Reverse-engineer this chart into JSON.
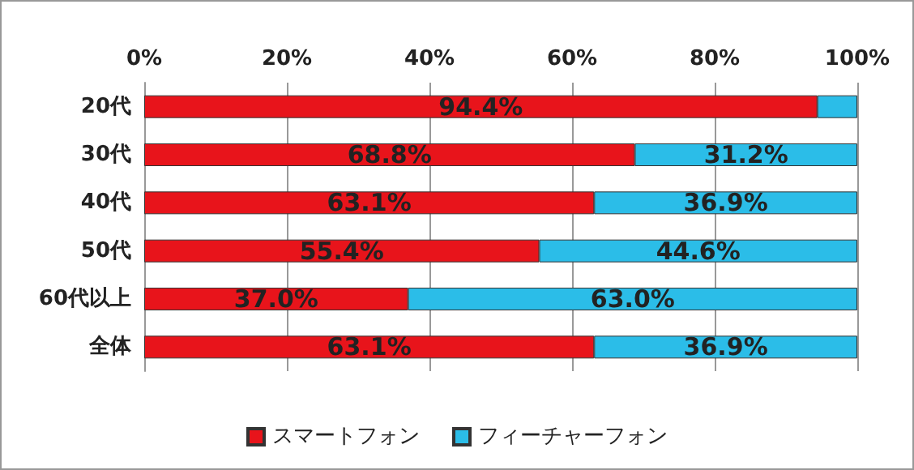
{
  "chart_data": {
    "type": "bar",
    "orientation": "horizontal",
    "stacked": true,
    "categories": [
      "20代",
      "30代",
      "40代",
      "50代",
      "60代以上",
      "全体"
    ],
    "series": [
      {
        "name": "スマートフォン",
        "color": "#e8141b",
        "values": [
          94.4,
          68.8,
          63.1,
          55.4,
          37.0,
          63.1
        ],
        "value_labels": [
          "94.4%",
          "68.8%",
          "63.1%",
          "55.4%",
          "37.0%",
          "63.1%"
        ]
      },
      {
        "name": "フィーチャーフォン",
        "color": "#2bbde8",
        "values": [
          5.6,
          31.2,
          36.9,
          44.6,
          63.0,
          36.9
        ],
        "value_labels": [
          null,
          "31.2%",
          "36.9%",
          "44.6%",
          "63.0%",
          "36.9%"
        ]
      }
    ],
    "xlim": [
      0,
      100
    ],
    "xticks": [
      {
        "value": 0,
        "label": "0%"
      },
      {
        "value": 20,
        "label": "20%"
      },
      {
        "value": 40,
        "label": "40%"
      },
      {
        "value": 60,
        "label": "60%"
      },
      {
        "value": 80,
        "label": "80%"
      },
      {
        "value": 100,
        "label": "100%"
      }
    ],
    "grid": "x",
    "legend": "bottom"
  }
}
